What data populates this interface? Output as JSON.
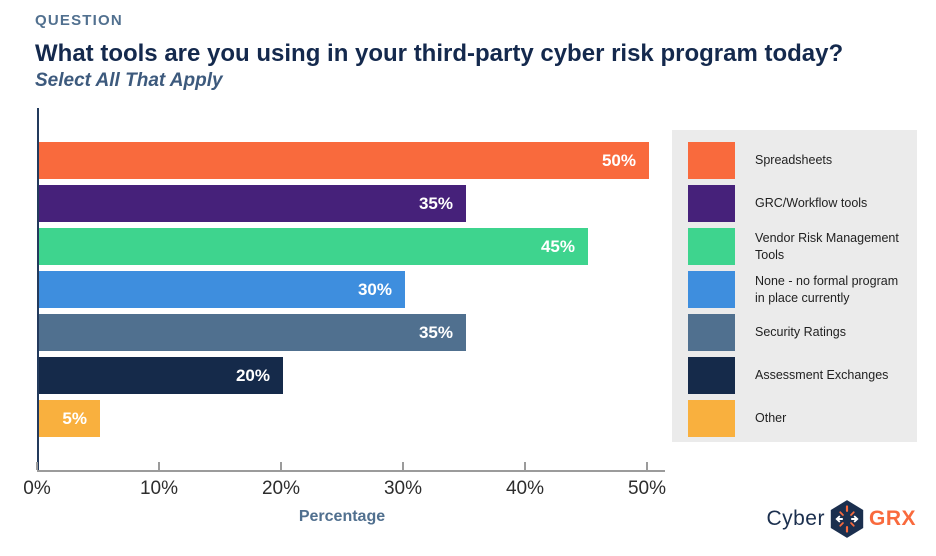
{
  "header": {
    "eyebrow": "QUESTION",
    "title": "What tools are you using in your third-party cyber risk program today?",
    "subtitle": "Select All That Apply",
    "eyebrow_color": "#51708f",
    "title_color": "#14294d",
    "subtitle_color": "#3d5a7d"
  },
  "chart_data": {
    "type": "bar",
    "orientation": "horizontal",
    "title": "What tools are you using in your third-party cyber risk program today?",
    "subtitle": "Select All That Apply",
    "xlabel": "Percentage",
    "ylabel": "",
    "xlim": [
      0,
      51.5
    ],
    "grid": false,
    "legend_position": "right",
    "categories": [
      "Spreadsheets",
      "GRC/Workflow tools",
      "Vendor Risk Management Tools",
      "None - no formal program in place currently",
      "Security Ratings",
      "Assessment Exchanges",
      "Other"
    ],
    "values": [
      50,
      35,
      45,
      30,
      35,
      20,
      5
    ],
    "value_labels": [
      "50%",
      "35%",
      "45%",
      "30%",
      "35%",
      "20%",
      "5%"
    ],
    "bar_colors": [
      "#f96a3d",
      "#46217a",
      "#3ed48e",
      "#3e8ede",
      "#50708f",
      "#152a4a",
      "#f9b03e"
    ],
    "x_ticks": [
      {
        "value": 0,
        "label": "0%"
      },
      {
        "value": 10,
        "label": "10%"
      },
      {
        "value": 20,
        "label": "20%"
      },
      {
        "value": 30,
        "label": "30%"
      },
      {
        "value": 40,
        "label": "40%"
      },
      {
        "value": 50,
        "label": "50%"
      }
    ]
  },
  "legend": {
    "background": "#ebebeb",
    "items": [
      {
        "label": "Spreadsheets",
        "color": "#f96a3d"
      },
      {
        "label": "GRC/Workflow tools",
        "color": "#46217a"
      },
      {
        "label": "Vendor Risk Management Tools",
        "color": "#3ed48e"
      },
      {
        "label": "None - no formal program in place currently",
        "color": "#3e8ede"
      },
      {
        "label": "Security Ratings",
        "color": "#50708f"
      },
      {
        "label": "Assessment Exchanges",
        "color": "#152a4a"
      },
      {
        "label": "Other",
        "color": "#f9b03e"
      }
    ]
  },
  "axis": {
    "x_title": "Percentage",
    "axis_line_color": "#9b9b9b",
    "y_axis_color": "#233a5c",
    "tick_label_color": "#2d2d2d",
    "x_title_color": "#51708f"
  },
  "logo": {
    "cyber_text": "Cyber",
    "grx_text": "GRX",
    "cyber_color": "#1b2f4e",
    "grx_color": "#f96a3d",
    "hexagon_color": "#1b2f4e",
    "accent_color": "#f96a3d"
  }
}
